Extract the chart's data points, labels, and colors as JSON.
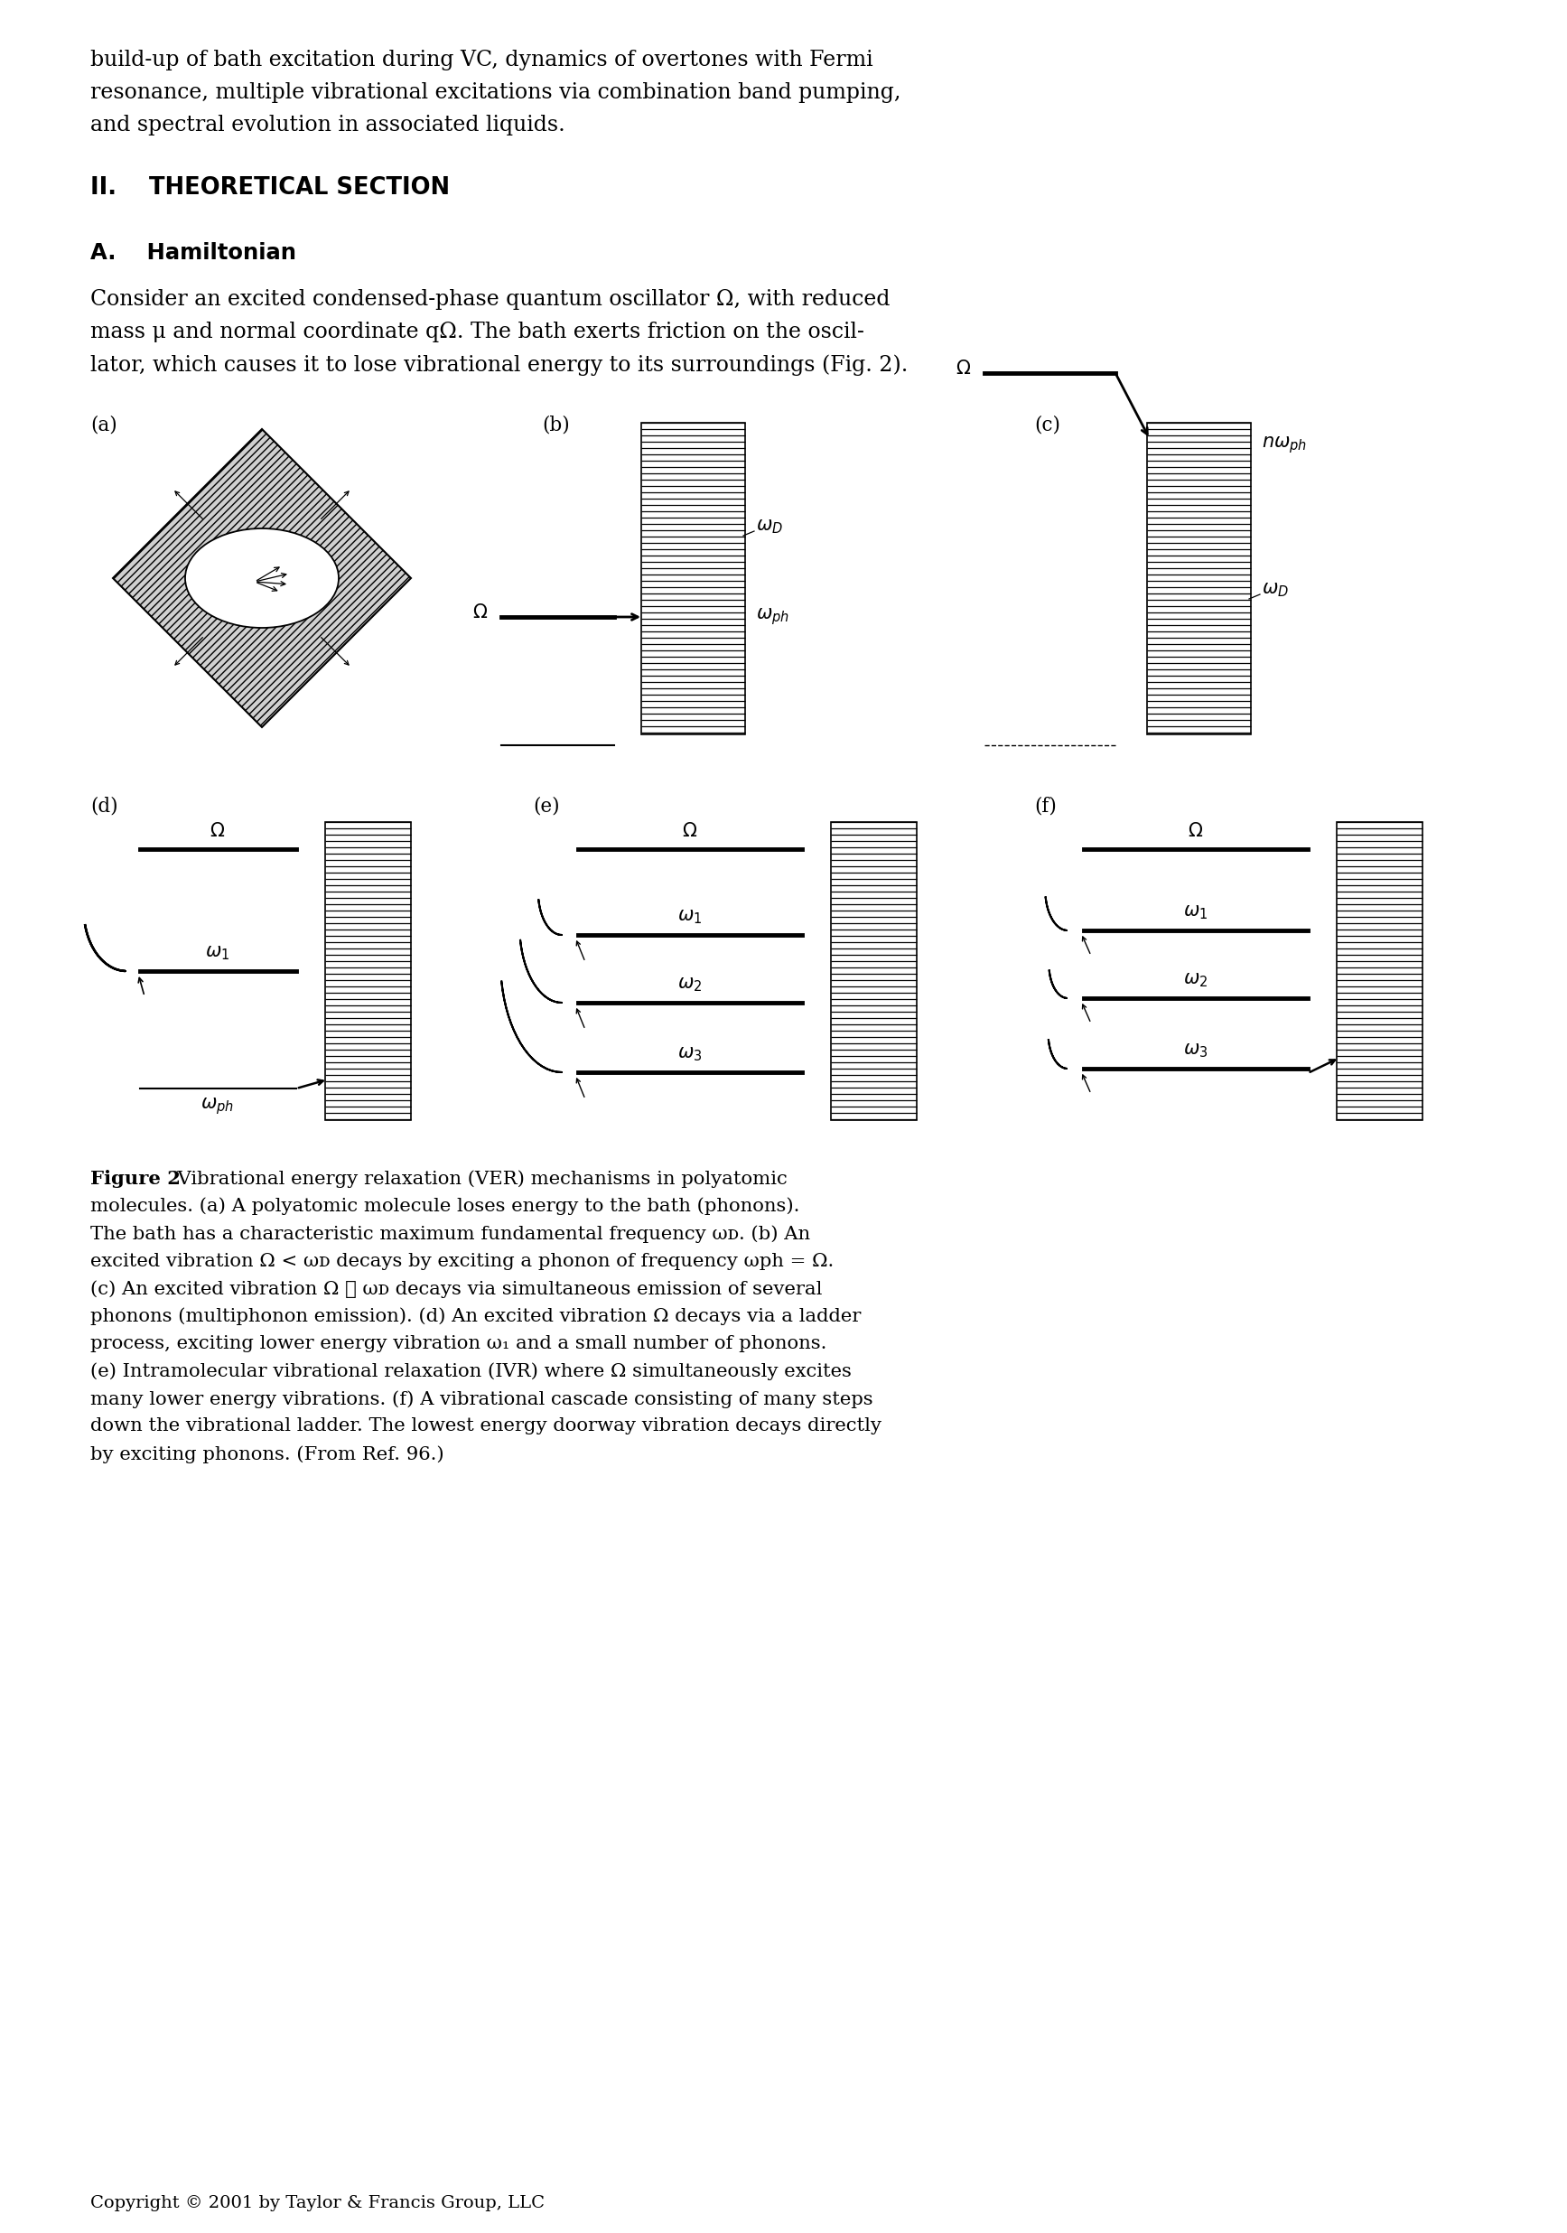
{
  "bg_color": "#ffffff",
  "page_width": 17.35,
  "page_height": 24.72,
  "text_color": "#000000",
  "para1_line1": "build-up of bath excitation during VC, dynamics of overtones with Fermi",
  "para1_line2": "resonance, multiple vibrational excitations via combination band pumping,",
  "para1_line3": "and spectral evolution in associated liquids.",
  "section_title": "II.    THEORETICAL SECTION",
  "subsection_title": "A.    Hamiltonian",
  "para2_line1": "Consider an excited condensed-phase quantum oscillator Ω, with reduced",
  "para2_line2": "mass μ and normal coordinate qΩ. The bath exerts friction on the oscil-",
  "para2_line3": "lator, which causes it to lose vibrational energy to its surroundings (Fig. 2).",
  "copyright": "Copyright © 2001 by Taylor & Francis Group, LLC",
  "fig_label_a": "(a)",
  "fig_label_b": "(b)",
  "fig_label_c": "(c)",
  "fig_label_d": "(d)",
  "fig_label_e": "(e)",
  "fig_label_f": "(f)"
}
